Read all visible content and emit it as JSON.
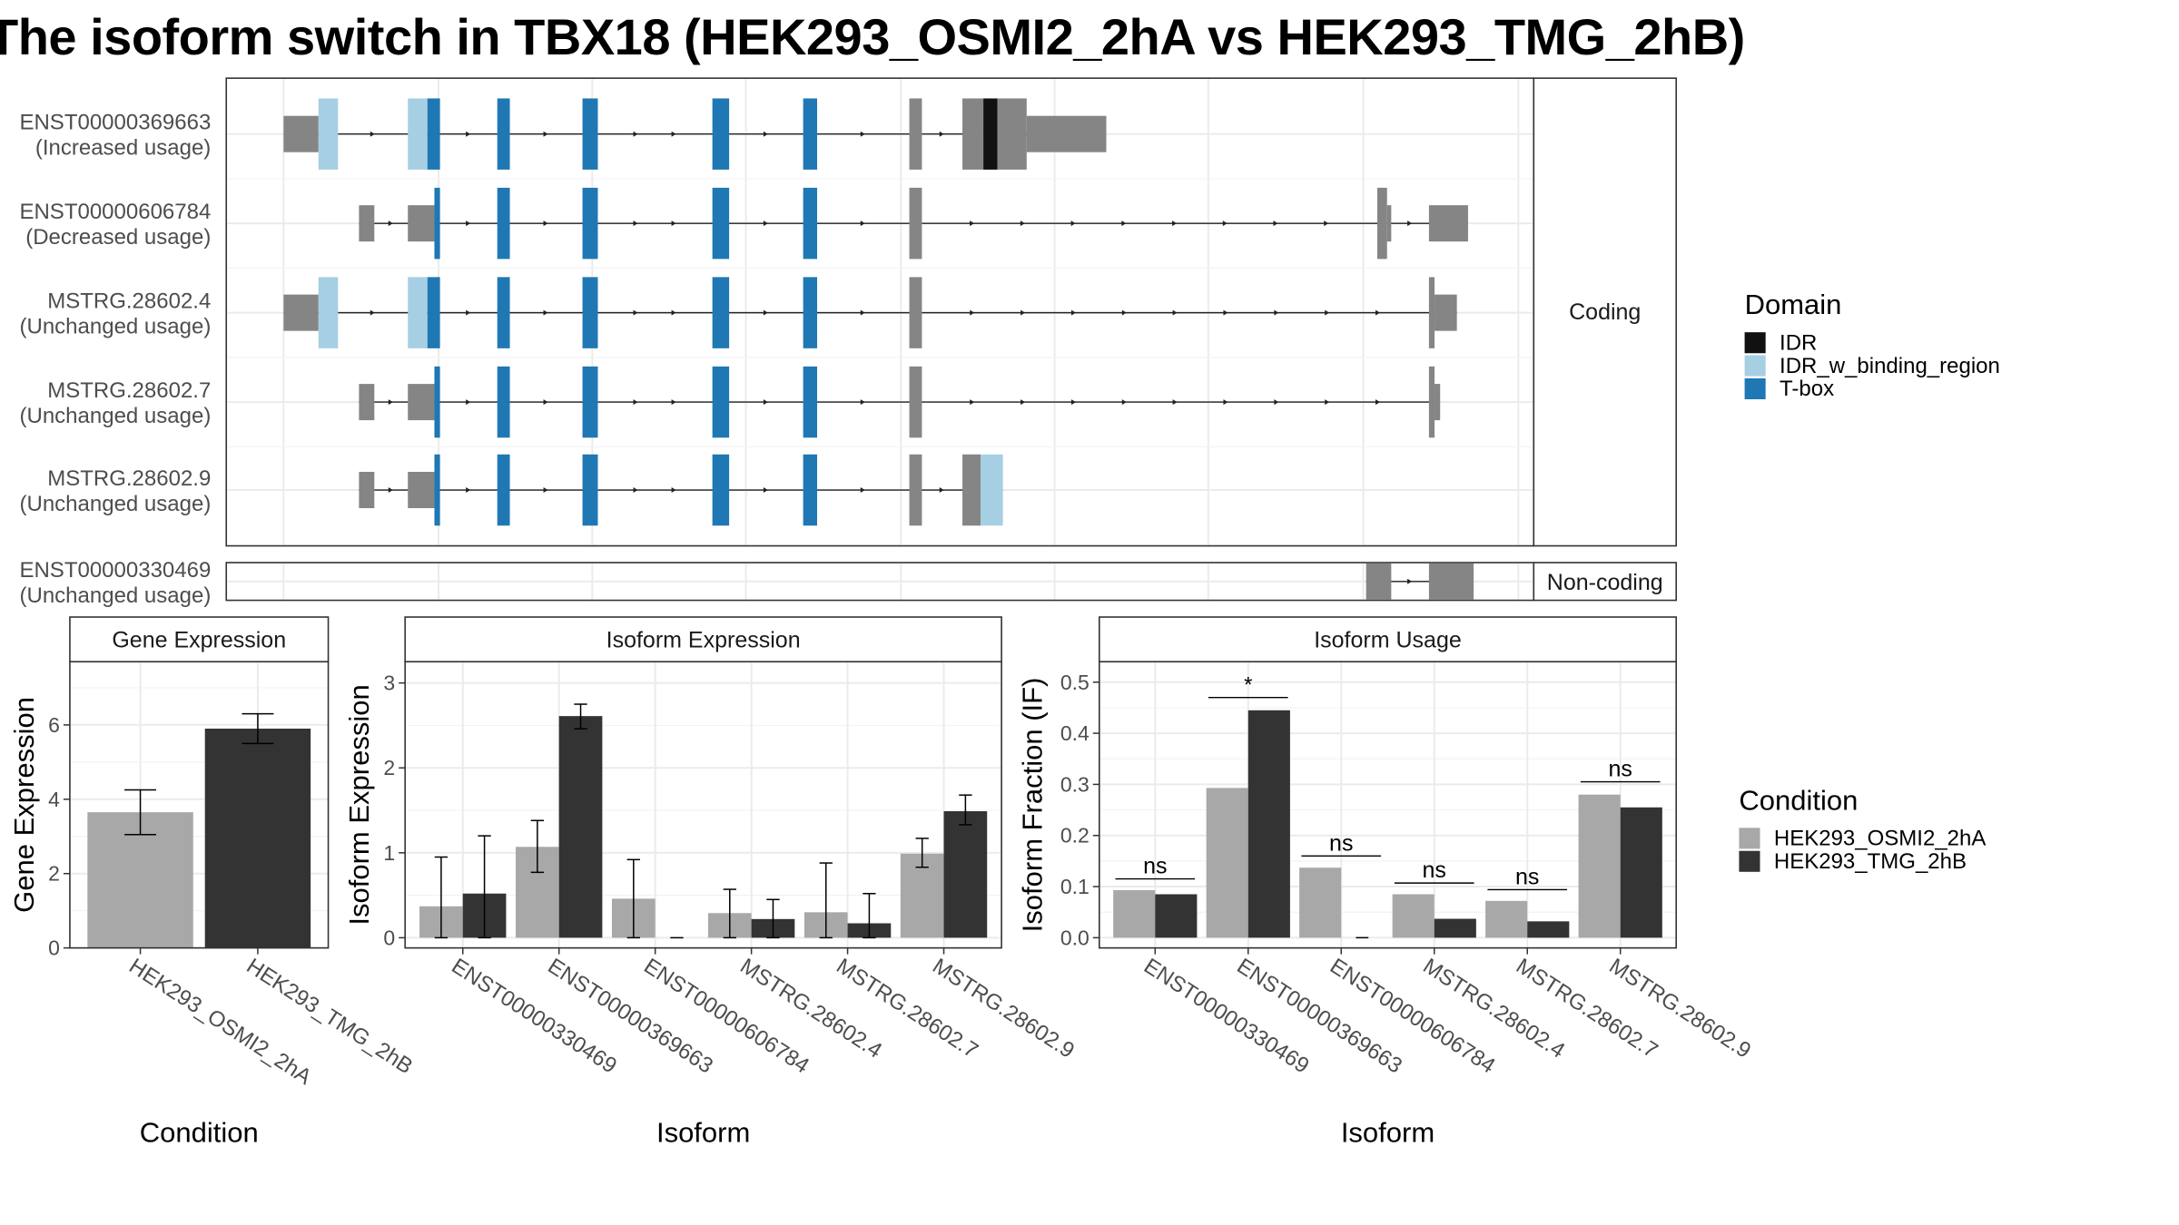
{
  "title": "The isoform switch in TBX18 (HEK293_OSMI2_2hA vs HEK293_TMG_2hB)",
  "colors": {
    "utr": "#858585",
    "IDR": "#111111",
    "IDR_w_binding_region": "#a6cfe3",
    "T-box": "#1f78b4",
    "HEK293_OSMI2_2hA": "#a8a8a8",
    "HEK293_TMG_2hB": "#333333"
  },
  "structure": {
    "facets": {
      "coding": "Coding",
      "noncoding": "Non-coding"
    },
    "isoforms": [
      {
        "id": "ENST00000369663",
        "usage": "(Increased usage)",
        "tx": [
          203,
          792
        ],
        "exons": [
          [
            203,
            228,
            "utr",
            "s"
          ],
          [
            228,
            242,
            "IDR_w_binding_region",
            "t"
          ],
          [
            292,
            306,
            "IDR_w_binding_region",
            "t"
          ],
          [
            306,
            315,
            "T-box",
            "t"
          ],
          [
            356,
            365,
            "T-box",
            "t"
          ],
          [
            417,
            428,
            "T-box",
            "t"
          ],
          [
            510,
            522,
            "T-box",
            "t"
          ],
          [
            575,
            585,
            "T-box",
            "t"
          ],
          [
            651,
            660,
            "utr",
            "t"
          ],
          [
            689,
            704,
            "utr",
            "t"
          ],
          [
            704,
            714,
            "IDR",
            "t"
          ],
          [
            714,
            735,
            "utr",
            "t"
          ],
          [
            735,
            792,
            "utr",
            "s"
          ]
        ]
      },
      {
        "id": "ENST00000606784",
        "usage": "(Decreased usage)",
        "tx": [
          257,
          1051
        ],
        "exons": [
          [
            257,
            268,
            "utr",
            "s"
          ],
          [
            292,
            311,
            "utr",
            "s"
          ],
          [
            311,
            315,
            "T-box",
            "t"
          ],
          [
            356,
            365,
            "T-box",
            "t"
          ],
          [
            417,
            428,
            "T-box",
            "t"
          ],
          [
            510,
            522,
            "T-box",
            "t"
          ],
          [
            575,
            585,
            "T-box",
            "t"
          ],
          [
            651,
            660,
            "utr",
            "t"
          ],
          [
            986,
            993,
            "utr",
            "t"
          ],
          [
            993,
            996,
            "utr",
            "s"
          ],
          [
            1023,
            1051,
            "utr",
            "s"
          ]
        ]
      },
      {
        "id": "MSTRG.28602.4",
        "usage": "(Unchanged usage)",
        "tx": [
          203,
          1043
        ],
        "exons": [
          [
            203,
            228,
            "utr",
            "s"
          ],
          [
            228,
            242,
            "IDR_w_binding_region",
            "t"
          ],
          [
            292,
            306,
            "IDR_w_binding_region",
            "t"
          ],
          [
            306,
            315,
            "T-box",
            "t"
          ],
          [
            356,
            365,
            "T-box",
            "t"
          ],
          [
            417,
            428,
            "T-box",
            "t"
          ],
          [
            510,
            522,
            "T-box",
            "t"
          ],
          [
            575,
            585,
            "T-box",
            "t"
          ],
          [
            651,
            660,
            "utr",
            "t"
          ],
          [
            1023,
            1027,
            "utr",
            "t"
          ],
          [
            1027,
            1043,
            "utr",
            "s"
          ]
        ]
      },
      {
        "id": "MSTRG.28602.7",
        "usage": "(Unchanged usage)",
        "tx": [
          257,
          1031
        ],
        "exons": [
          [
            257,
            268,
            "utr",
            "s"
          ],
          [
            292,
            311,
            "utr",
            "s"
          ],
          [
            311,
            315,
            "T-box",
            "t"
          ],
          [
            356,
            365,
            "T-box",
            "t"
          ],
          [
            417,
            428,
            "T-box",
            "t"
          ],
          [
            510,
            522,
            "T-box",
            "t"
          ],
          [
            575,
            585,
            "T-box",
            "t"
          ],
          [
            651,
            660,
            "utr",
            "t"
          ],
          [
            1023,
            1027,
            "utr",
            "t"
          ],
          [
            1027,
            1031,
            "utr",
            "s"
          ]
        ]
      },
      {
        "id": "MSTRG.28602.9",
        "usage": "(Unchanged usage)",
        "tx": [
          257,
          718
        ],
        "exons": [
          [
            257,
            268,
            "utr",
            "s"
          ],
          [
            292,
            311,
            "utr",
            "s"
          ],
          [
            311,
            315,
            "T-box",
            "t"
          ],
          [
            356,
            365,
            "T-box",
            "t"
          ],
          [
            417,
            428,
            "T-box",
            "t"
          ],
          [
            510,
            522,
            "T-box",
            "t"
          ],
          [
            575,
            585,
            "T-box",
            "t"
          ],
          [
            651,
            660,
            "utr",
            "t"
          ],
          [
            689,
            702,
            "utr",
            "t"
          ],
          [
            702,
            718,
            "IDR_w_binding_region",
            "t"
          ]
        ]
      }
    ],
    "noncoding": {
      "id": "ENST00000330469",
      "usage": "(Unchanged usage)",
      "tx": [
        978,
        1055
      ],
      "exons": [
        [
          978,
          996,
          "utr",
          "t"
        ],
        [
          1023,
          1055,
          "utr",
          "t"
        ]
      ]
    }
  },
  "legend_domain": {
    "title": "Domain",
    "items": [
      "IDR",
      "IDR_w_binding_region",
      "T-box"
    ]
  },
  "legend_condition": {
    "title": "Condition",
    "items": [
      "HEK293_OSMI2_2hA",
      "HEK293_TMG_2hB"
    ]
  },
  "chart_data": [
    {
      "type": "bar",
      "title": "Gene Expression",
      "xlabel": "Condition",
      "ylabel": "Gene Expression",
      "ylim": [
        0,
        7.7
      ],
      "yticks": [
        0,
        2,
        4,
        6
      ],
      "categories": [
        "HEK293_OSMI2_2hA",
        "HEK293_TMG_2hB"
      ],
      "values": [
        3.65,
        5.9
      ],
      "errors": [
        [
          3.05,
          4.25
        ],
        [
          5.5,
          6.3
        ]
      ]
    },
    {
      "type": "bar",
      "title": "Isoform Expression",
      "xlabel": "Isoform",
      "ylabel": "Isoform Expression",
      "ylim": [
        -0.12,
        3.25
      ],
      "yticks": [
        0,
        1,
        2,
        3
      ],
      "categories": [
        "ENST00000330469",
        "ENST00000369663",
        "ENST00000606784",
        "MSTRG.28602.4",
        "MSTRG.28602.7",
        "MSTRG.28602.9"
      ],
      "series": [
        {
          "name": "HEK293_OSMI2_2hA",
          "values": [
            0.37,
            1.07,
            0.46,
            0.29,
            0.3,
            0.99
          ],
          "errors": [
            [
              0,
              0.95
            ],
            [
              0.77,
              1.38
            ],
            [
              0,
              0.92
            ],
            [
              0,
              0.57
            ],
            [
              0,
              0.88
            ],
            [
              0.83,
              1.17
            ]
          ]
        },
        {
          "name": "HEK293_TMG_2hB",
          "values": [
            0.52,
            2.61,
            0.0,
            0.22,
            0.17,
            1.49
          ],
          "errors": [
            [
              0,
              1.2
            ],
            [
              2.46,
              2.75
            ],
            [
              0,
              0
            ],
            [
              0,
              0.45
            ],
            [
              0,
              0.52
            ],
            [
              1.33,
              1.68
            ]
          ]
        }
      ]
    },
    {
      "type": "bar",
      "title": "Isoform Usage",
      "xlabel": "Isoform",
      "ylabel": "Isoform Fraction (IF)",
      "ylim": [
        -0.02,
        0.54
      ],
      "yticks": [
        0.0,
        0.1,
        0.2,
        0.3,
        0.4,
        0.5
      ],
      "categories": [
        "ENST00000330469",
        "ENST00000369663",
        "ENST00000606784",
        "MSTRG.28602.4",
        "MSTRG.28602.7",
        "MSTRG.28602.9"
      ],
      "series": [
        {
          "name": "HEK293_OSMI2_2hA",
          "values": [
            0.093,
            0.293,
            0.137,
            0.085,
            0.072,
            0.28
          ]
        },
        {
          "name": "HEK293_TMG_2hB",
          "values": [
            0.085,
            0.445,
            0.0,
            0.037,
            0.032,
            0.255
          ]
        }
      ],
      "significance": [
        "ns",
        "*",
        "ns",
        "ns",
        "ns",
        "ns"
      ],
      "sig_y": [
        0.115,
        0.47,
        0.16,
        0.107,
        0.094,
        0.305
      ]
    }
  ]
}
